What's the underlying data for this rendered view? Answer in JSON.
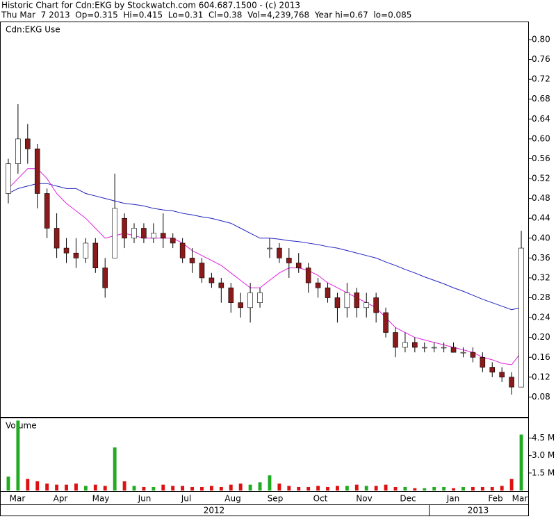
{
  "header": {
    "title": "Historic Chart for Cdn:EKG by Stockwatch.com 604.687.1500 - (c) 2013",
    "quote": "Thu Mar  7 2013  Op=0.315  Hi=0.415  Lo=0.31  Cl=0.38  Vol=4,239,768  Year hi=0.67  lo=0.085"
  },
  "x_axis": {
    "months": [
      "Mar",
      "Apr",
      "May",
      "Jun",
      "Jul",
      "Aug",
      "Sep",
      "Oct",
      "Nov",
      "Dec",
      "Jan",
      "Feb",
      "Mar"
    ],
    "years": [
      "2012",
      "2013"
    ]
  },
  "chart_data": [
    {
      "type": "candlestick",
      "title": "Cdn:EKG Use",
      "up_color": "#ffffff",
      "down_color": "#8b1a1a",
      "open": [
        0.49,
        0.55,
        0.6,
        0.58,
        0.49,
        0.42,
        0.38,
        0.37,
        0.36,
        0.39,
        0.34,
        0.36,
        0.44,
        0.4,
        0.42,
        0.4,
        0.41,
        0.4,
        0.39,
        0.36,
        0.35,
        0.32,
        0.31,
        0.3,
        0.27,
        0.26,
        0.27,
        0.38,
        0.38,
        0.36,
        0.35,
        0.34,
        0.31,
        0.3,
        0.28,
        0.26,
        0.29,
        0.26,
        0.28,
        0.25,
        0.21,
        0.18,
        0.19,
        0.18,
        0.18,
        0.18,
        0.18,
        0.17,
        0.17,
        0.16,
        0.14,
        0.13,
        0.12,
        0.1
      ],
      "high": [
        0.56,
        0.67,
        0.63,
        0.59,
        0.5,
        0.45,
        0.4,
        0.4,
        0.4,
        0.4,
        0.36,
        0.53,
        0.45,
        0.43,
        0.43,
        0.43,
        0.45,
        0.41,
        0.4,
        0.38,
        0.36,
        0.33,
        0.32,
        0.31,
        0.29,
        0.31,
        0.3,
        0.4,
        0.39,
        0.38,
        0.37,
        0.35,
        0.32,
        0.31,
        0.29,
        0.31,
        0.3,
        0.29,
        0.29,
        0.26,
        0.22,
        0.21,
        0.2,
        0.19,
        0.19,
        0.19,
        0.19,
        0.18,
        0.18,
        0.17,
        0.15,
        0.14,
        0.13,
        0.415
      ],
      "low": [
        0.47,
        0.53,
        0.55,
        0.46,
        0.4,
        0.36,
        0.35,
        0.34,
        0.35,
        0.33,
        0.28,
        0.36,
        0.38,
        0.39,
        0.39,
        0.39,
        0.38,
        0.38,
        0.35,
        0.33,
        0.31,
        0.3,
        0.27,
        0.25,
        0.24,
        0.23,
        0.26,
        0.36,
        0.35,
        0.32,
        0.33,
        0.29,
        0.28,
        0.27,
        0.23,
        0.24,
        0.24,
        0.24,
        0.23,
        0.2,
        0.16,
        0.17,
        0.17,
        0.17,
        0.17,
        0.17,
        0.17,
        0.16,
        0.15,
        0.13,
        0.12,
        0.11,
        0.085,
        0.1
      ],
      "close": [
        0.55,
        0.6,
        0.58,
        0.49,
        0.42,
        0.38,
        0.37,
        0.36,
        0.39,
        0.34,
        0.3,
        0.46,
        0.4,
        0.42,
        0.4,
        0.41,
        0.4,
        0.39,
        0.36,
        0.35,
        0.32,
        0.31,
        0.3,
        0.27,
        0.26,
        0.29,
        0.29,
        0.38,
        0.36,
        0.35,
        0.34,
        0.31,
        0.3,
        0.28,
        0.26,
        0.29,
        0.26,
        0.27,
        0.25,
        0.21,
        0.18,
        0.19,
        0.18,
        0.18,
        0.18,
        0.18,
        0.17,
        0.17,
        0.16,
        0.14,
        0.13,
        0.12,
        0.1,
        0.38
      ],
      "lines": [
        {
          "color": "#2020c0",
          "values": [
            0.49,
            0.5,
            0.505,
            0.51,
            0.51,
            0.505,
            0.5,
            0.5,
            0.49,
            0.485,
            0.48,
            0.475,
            0.47,
            0.468,
            0.465,
            0.46,
            0.457,
            0.455,
            0.45,
            0.447,
            0.443,
            0.44,
            0.435,
            0.43,
            0.42,
            0.41,
            0.4,
            0.4,
            0.398,
            0.395,
            0.393,
            0.39,
            0.387,
            0.383,
            0.38,
            0.375,
            0.37,
            0.365,
            0.36,
            0.352,
            0.345,
            0.337,
            0.33,
            0.322,
            0.315,
            0.308,
            0.3,
            0.293,
            0.285,
            0.277,
            0.27,
            0.263,
            0.256,
            0.26
          ]
        },
        {
          "color": "#e020e0",
          "values": [
            0.5,
            0.52,
            0.54,
            0.54,
            0.52,
            0.49,
            0.47,
            0.455,
            0.44,
            0.42,
            0.4,
            0.405,
            0.41,
            0.405,
            0.4,
            0.4,
            0.4,
            0.4,
            0.39,
            0.375,
            0.365,
            0.355,
            0.345,
            0.33,
            0.315,
            0.3,
            0.3,
            0.315,
            0.33,
            0.34,
            0.34,
            0.335,
            0.325,
            0.31,
            0.3,
            0.29,
            0.28,
            0.27,
            0.26,
            0.24,
            0.22,
            0.21,
            0.2,
            0.195,
            0.19,
            0.185,
            0.18,
            0.175,
            0.17,
            0.16,
            0.155,
            0.148,
            0.145,
            0.17
          ]
        }
      ],
      "ylim": [
        0.04,
        0.835
      ],
      "yticks": [
        {
          "value": 0.08,
          "label": "0.08"
        },
        {
          "value": 0.12,
          "label": "0.12"
        },
        {
          "value": 0.16,
          "label": "0.16"
        },
        {
          "value": 0.2,
          "label": "0.20"
        },
        {
          "value": 0.24,
          "label": "0.24"
        },
        {
          "value": 0.28,
          "label": "0.28"
        },
        {
          "value": 0.32,
          "label": "0.32"
        },
        {
          "value": 0.36,
          "label": "0.36"
        },
        {
          "value": 0.4,
          "label": "0.40"
        },
        {
          "value": 0.44,
          "label": "0.44"
        },
        {
          "value": 0.48,
          "label": "0.48"
        },
        {
          "value": 0.52,
          "label": "0.52"
        },
        {
          "value": 0.56,
          "label": "0.56"
        },
        {
          "value": 0.6,
          "label": "0.60"
        },
        {
          "value": 0.64,
          "label": "0.64"
        },
        {
          "value": 0.68,
          "label": "0.68"
        },
        {
          "value": 0.72,
          "label": "0.72"
        },
        {
          "value": 0.76,
          "label": "0.76"
        },
        {
          "value": 0.8,
          "label": "0.80"
        }
      ]
    },
    {
      "type": "bar",
      "title": "Volume",
      "up_color": "#22aa22",
      "down_color": "#dd1111",
      "values": [
        1.2,
        6.0,
        1.0,
        0.8,
        0.6,
        0.5,
        0.5,
        0.6,
        0.4,
        0.5,
        0.4,
        3.7,
        0.8,
        0.4,
        0.3,
        0.3,
        0.5,
        0.4,
        0.4,
        0.3,
        0.3,
        0.4,
        0.3,
        0.5,
        0.6,
        0.5,
        0.7,
        1.3,
        0.6,
        0.4,
        0.3,
        0.3,
        0.4,
        0.3,
        0.4,
        0.4,
        0.5,
        0.4,
        0.4,
        0.5,
        0.3,
        0.3,
        0.2,
        0.2,
        0.3,
        0.3,
        0.2,
        0.3,
        0.3,
        0.3,
        0.3,
        0.4,
        1.0,
        4.8
      ],
      "ylim": [
        0,
        6.2
      ],
      "yticks": [
        {
          "value": 1.5,
          "label": "1.5 M"
        },
        {
          "value": 3.0,
          "label": "3.0 M"
        },
        {
          "value": 4.5,
          "label": "4.5 M"
        }
      ]
    }
  ]
}
